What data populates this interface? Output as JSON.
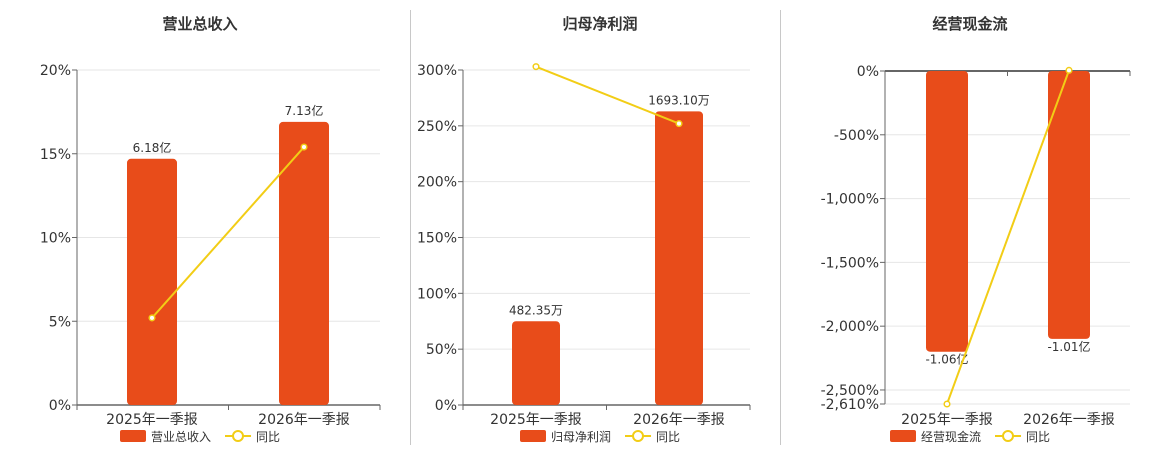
{
  "colors": {
    "bar": "#e84c1a",
    "line": "#f2cd16",
    "axis": "#666666",
    "grid": "#e6e6e6"
  },
  "chart_data": [
    {
      "type": "bar",
      "title": "营业总收入",
      "categories": [
        "2025年一季报",
        "2026年一季报"
      ],
      "ylim": [
        0,
        20
      ],
      "yticks": [
        "0%",
        "5%",
        "10%",
        "15%",
        "20%"
      ],
      "ytick_values": [
        0,
        5,
        10,
        15,
        20
      ],
      "grid": true,
      "legend_position": "bottom",
      "series": [
        {
          "name": "营业总收入",
          "kind": "bar",
          "values": [
            14.7,
            16.9
          ],
          "labels": [
            "6.18亿",
            "7.13亿"
          ]
        },
        {
          "name": "同比",
          "kind": "line",
          "values": [
            5.2,
            15.4
          ]
        }
      ]
    },
    {
      "type": "bar",
      "title": "归母净利润",
      "categories": [
        "2025年一季报",
        "2026年一季报"
      ],
      "ylim": [
        0,
        300
      ],
      "yticks": [
        "0%",
        "50%",
        "100%",
        "150%",
        "200%",
        "250%",
        "300%"
      ],
      "ytick_values": [
        0,
        50,
        100,
        150,
        200,
        250,
        300
      ],
      "grid": true,
      "legend_position": "bottom",
      "series": [
        {
          "name": "归母净利润",
          "kind": "bar",
          "values": [
            75,
            263
          ],
          "labels": [
            "482.35万",
            "1693.10万"
          ]
        },
        {
          "name": "同比",
          "kind": "line",
          "values": [
            303,
            252
          ]
        }
      ]
    },
    {
      "type": "bar",
      "title": "经营现金流",
      "categories": [
        "2025年一季报",
        "2026年一季报"
      ],
      "ylim": [
        -2610,
        0
      ],
      "yticks": [
        "0%",
        "-500%",
        "-1,000%",
        "-1,500%",
        "-2,000%",
        "-2,500%",
        "-2,610%"
      ],
      "ytick_values": [
        0,
        -500,
        -1000,
        -1500,
        -2000,
        -2500,
        -2610
      ],
      "grid": true,
      "legend_position": "bottom",
      "series": [
        {
          "name": "经营现金流",
          "kind": "bar",
          "values": [
            -2200,
            -2100
          ],
          "labels": [
            "-1.06亿",
            "-1.01亿"
          ]
        },
        {
          "name": "同比",
          "kind": "line",
          "values": [
            -2610,
            5
          ]
        }
      ]
    }
  ]
}
